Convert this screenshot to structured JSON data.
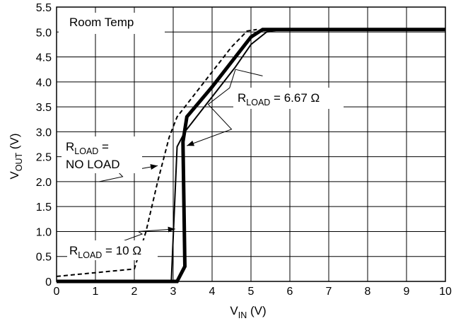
{
  "chart_data": {
    "type": "line",
    "xlabel": {
      "main": "V",
      "sub": "IN",
      "unit": " (V)"
    },
    "ylabel": {
      "main": "V",
      "sub": "OUT",
      "unit": " (V)"
    },
    "xlim": [
      0,
      10
    ],
    "ylim": [
      0,
      5.5
    ],
    "x_ticks": [
      "0",
      "1",
      "2",
      "3",
      "4",
      "5",
      "6",
      "7",
      "8",
      "9",
      "10"
    ],
    "y_ticks": [
      "0",
      "0.5",
      "1.0",
      "1.5",
      "2.0",
      "2.5",
      "3.0",
      "3.5",
      "4.0",
      "4.5",
      "5.0",
      "5.5"
    ],
    "grid": true,
    "annotations": {
      "box_label": "Room Temp",
      "load_667": {
        "main": "R",
        "sub": "LOAD",
        "rest": " = 6.67 Ω"
      },
      "no_load_line1": {
        "main": "R",
        "sub": "LOAD",
        "rest": " ="
      },
      "no_load_line2": "NO LOAD",
      "load_10": {
        "main": "R",
        "sub": "LOAD",
        "rest": " = 10 Ω"
      }
    },
    "series": [
      {
        "style": "dashed",
        "x": [
          0,
          2.0,
          2.3,
          2.6,
          2.9,
          3.1,
          3.5,
          4.0,
          4.5,
          4.9,
          5.15
        ],
        "y": [
          0.1,
          0.25,
          1.0,
          2.0,
          2.9,
          3.3,
          3.7,
          4.2,
          4.7,
          5.02,
          5.05
        ]
      },
      {
        "style": "thin",
        "x": [
          0,
          2.95,
          3.1,
          3.3,
          4.0,
          4.6,
          5.0,
          5.4,
          5.8,
          10
        ],
        "y": [
          0,
          0,
          2.7,
          3.0,
          3.7,
          4.3,
          4.75,
          5.0,
          5.05,
          5.05
        ]
      },
      {
        "style": "thick",
        "x": [
          0,
          3.1,
          3.3,
          3.25,
          3.35,
          4.0,
          4.6,
          5.0,
          5.3,
          10
        ],
        "y": [
          0,
          0,
          0.3,
          2.8,
          3.3,
          3.9,
          4.5,
          4.9,
          5.05,
          5.05
        ]
      }
    ]
  }
}
